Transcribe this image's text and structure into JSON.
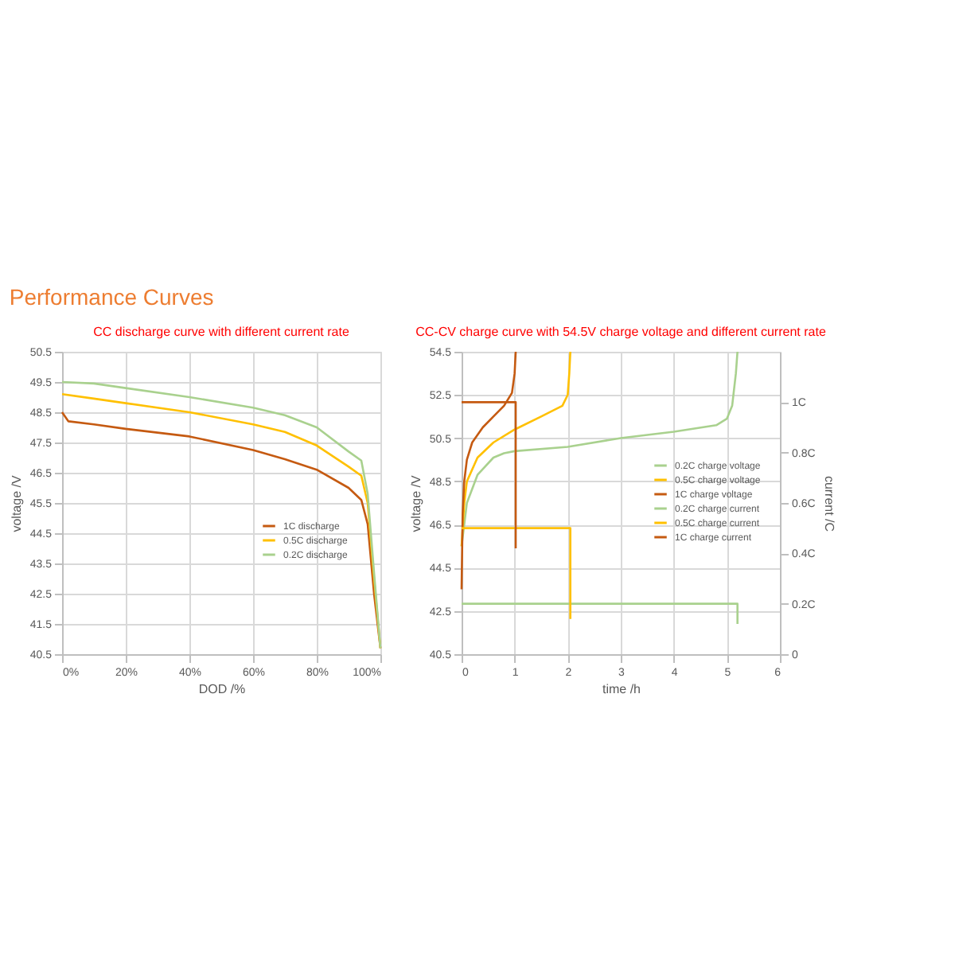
{
  "chart_data": [
    {
      "type": "line",
      "title": "CC discharge curve with different current rate",
      "xlabel": "DOD /%",
      "ylabel": "voltage /V",
      "annotations": [
        "Performance Curves"
      ],
      "xlim": [
        0,
        100
      ],
      "xticks": [
        {
          "value": 0,
          "label": "0%"
        },
        {
          "value": 20,
          "label": "20%"
        },
        {
          "value": 40,
          "label": "40%"
        },
        {
          "value": 60,
          "label": "60%"
        },
        {
          "value": 80,
          "label": "80%"
        },
        {
          "value": 100,
          "label": "100%"
        }
      ],
      "ylim": [
        40.5,
        50.5
      ],
      "yticks": [
        40.5,
        41.5,
        42.5,
        43.5,
        44.5,
        45.5,
        46.5,
        47.5,
        48.5,
        49.5,
        50.5
      ],
      "grid": true,
      "legend": "bottom right",
      "marker": "none",
      "line_style": "solid",
      "series": [
        {
          "name": "1C discharge",
          "color": "#c55a11",
          "x": [
            0,
            2,
            10,
            20,
            40,
            60,
            70,
            80,
            90,
            94,
            96,
            98,
            100
          ],
          "values": [
            48.5,
            48.2,
            48.1,
            47.95,
            47.7,
            47.25,
            46.95,
            46.6,
            46.0,
            45.6,
            44.8,
            42.5,
            40.7
          ]
        },
        {
          "name": "0.5C discharge",
          "color": "#ffc000",
          "x": [
            0,
            10,
            20,
            40,
            60,
            70,
            80,
            90,
            94,
            96,
            98,
            100
          ],
          "values": [
            49.1,
            48.95,
            48.8,
            48.5,
            48.1,
            47.85,
            47.4,
            46.7,
            46.4,
            45.5,
            43.0,
            40.7
          ]
        },
        {
          "name": "0.2C discharge",
          "color": "#a9d18e",
          "x": [
            0,
            10,
            20,
            40,
            60,
            70,
            80,
            90,
            94,
            96,
            98,
            100
          ],
          "values": [
            49.5,
            49.45,
            49.3,
            49.0,
            48.65,
            48.4,
            48.0,
            47.2,
            46.9,
            45.8,
            43.2,
            40.7
          ]
        }
      ]
    },
    {
      "type": "line",
      "title": "CC-CV charge curve with 54.5V charge voltage and different current rate",
      "xlabel": "time /h",
      "ylabel": "voltage /V",
      "y2label": "current /C",
      "xlim": [
        0,
        6
      ],
      "xticks": [
        0,
        1,
        2,
        3,
        4,
        5,
        6
      ],
      "ylim": [
        40.5,
        54.5
      ],
      "yticks": [
        40.5,
        42.5,
        44.5,
        46.5,
        48.5,
        50.5,
        52.5,
        54.5
      ],
      "y2lim": [
        0,
        1.2
      ],
      "y2ticks": [
        0,
        {
          "value": 0.2,
          "label": "0.2C"
        },
        {
          "value": 0.4,
          "label": "0.4C"
        },
        {
          "value": 0.6,
          "label": "0.6C"
        },
        {
          "value": 0.8,
          "label": "0.8C"
        },
        {
          "value": 1,
          "label": "1C"
        }
      ],
      "grid": true,
      "legend": "right",
      "marker": "none",
      "line_style": "solid",
      "series": [
        {
          "name": "0.2C charge voltage",
          "color": "#a9d18e",
          "x": [
            0,
            0.05,
            0.1,
            0.3,
            0.6,
            0.8,
            1.0,
            2.0,
            3.0,
            4.0,
            4.8,
            5.0,
            5.1,
            5.17,
            5.2
          ],
          "values": [
            45.5,
            46.5,
            47.5,
            48.8,
            49.6,
            49.8,
            49.9,
            50.1,
            50.5,
            50.8,
            51.1,
            51.4,
            52.0,
            53.5,
            54.5
          ]
        },
        {
          "name": "0.5C charge voltage",
          "color": "#ffc000",
          "x": [
            0,
            0.05,
            0.1,
            0.3,
            0.6,
            1.0,
            1.5,
            1.9,
            2.0,
            2.03,
            2.05
          ],
          "values": [
            45.5,
            47.5,
            48.5,
            49.6,
            50.3,
            50.9,
            51.5,
            52.0,
            52.5,
            53.5,
            54.5
          ]
        },
        {
          "name": "1C charge voltage",
          "color": "#c55a11",
          "x": [
            0,
            0.02,
            0.05,
            0.1,
            0.2,
            0.4,
            0.6,
            0.8,
            0.95,
            1.0,
            1.02
          ],
          "values": [
            43.5,
            47.0,
            48.5,
            49.5,
            50.3,
            51.0,
            51.5,
            52.0,
            52.6,
            53.5,
            54.5
          ]
        },
        {
          "name": "0.2C charge current",
          "color": "#a9d18e",
          "axis": "y2",
          "x": [
            0,
            5.2,
            5.2
          ],
          "values": [
            0.2,
            0.2,
            0.12
          ]
        },
        {
          "name": "0.5C charge current",
          "color": "#ffc000",
          "axis": "y2",
          "x": [
            0,
            2.05,
            2.05
          ],
          "values": [
            0.5,
            0.5,
            0.14
          ]
        },
        {
          "name": "1C charge current",
          "color": "#c55a11",
          "axis": "y2",
          "x": [
            0,
            1.02,
            1.02
          ],
          "values": [
            1.0,
            1.0,
            0.42
          ]
        }
      ]
    }
  ]
}
